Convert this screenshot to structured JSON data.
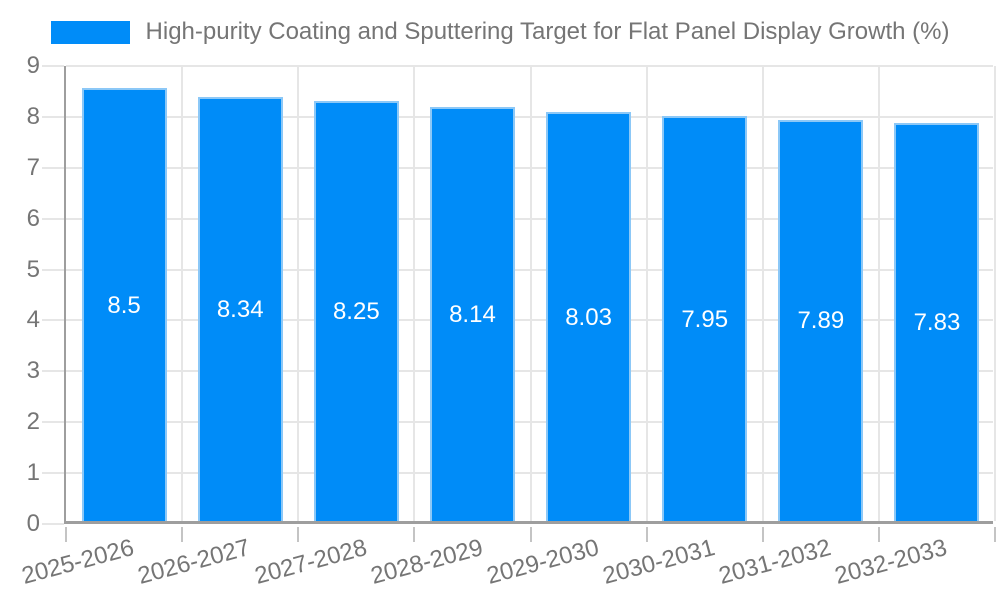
{
  "legend": {
    "label": "High-purity Coating and Sputtering Target for Flat Panel Display Growth (%)"
  },
  "colors": {
    "bar": "#008cf8",
    "bar_border": "#8cc8f7",
    "grid": "#e6e6e6",
    "axis": "#9e9e9e",
    "tick": "#c4c4c4",
    "text": "#757575",
    "value_label": "#ffffff",
    "background": "#ffffff"
  },
  "chart_data": {
    "type": "bar",
    "title": "High-purity Coating and Sputtering Target for Flat Panel Display Growth (%)",
    "categories": [
      "2025-2026",
      "2026-2027",
      "2027-2028",
      "2028-2029",
      "2029-2030",
      "2030-2031",
      "2031-2032",
      "2032-2033"
    ],
    "values": [
      8.5,
      8.34,
      8.25,
      8.14,
      8.03,
      7.95,
      7.89,
      7.83
    ],
    "value_labels": [
      "8.5",
      "8.34",
      "8.25",
      "8.14",
      "8.03",
      "7.95",
      "7.89",
      "7.83"
    ],
    "xlabel": "",
    "ylabel": "",
    "ylim": [
      0,
      9
    ],
    "yticks": [
      0,
      1,
      2,
      3,
      4,
      5,
      6,
      7,
      8,
      9
    ],
    "grid": true,
    "legend_position": "top"
  }
}
